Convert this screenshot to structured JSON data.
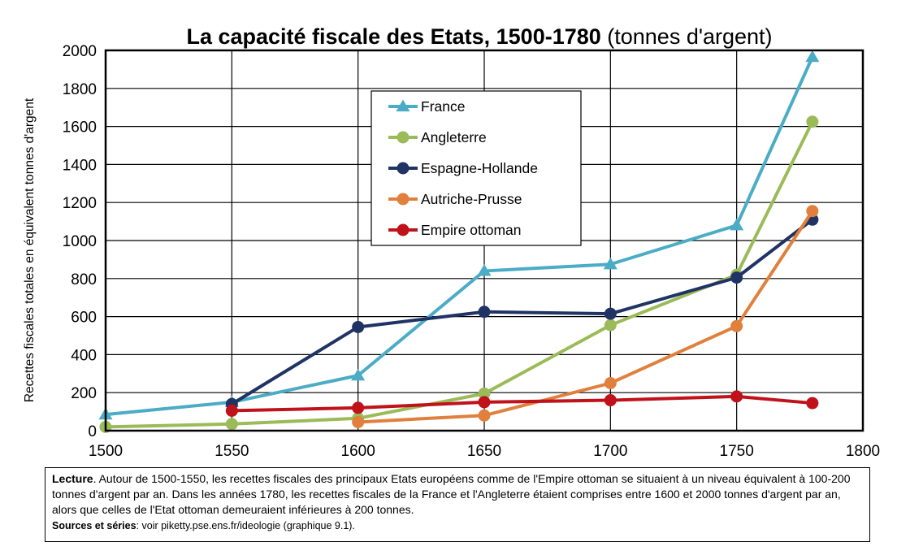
{
  "chart_data": {
    "type": "line",
    "title_bold": "La capacité fiscale des Etats, 1500-1780",
    "title_rest": " (tonnes d'argent)",
    "ylabel": "Recettes fiscales totales en équivalent tonnes d'argent",
    "xlabel": "",
    "xlim": [
      1500,
      1800
    ],
    "ylim": [
      0,
      2000
    ],
    "x_ticks": [
      "1500",
      "1550",
      "1600",
      "1650",
      "1700",
      "1750",
      "1800"
    ],
    "y_ticks": [
      "0",
      "200",
      "400",
      "600",
      "800",
      "1000",
      "1200",
      "1400",
      "1600",
      "1800",
      "2000"
    ],
    "grid": true,
    "legend_position": "upper-center",
    "series": [
      {
        "name": "France",
        "color": "#4bacc6",
        "marker": "triangle",
        "points": [
          [
            1500,
            85
          ],
          [
            1550,
            150
          ],
          [
            1600,
            290
          ],
          [
            1650,
            840
          ],
          [
            1700,
            875
          ],
          [
            1750,
            1080
          ],
          [
            1780,
            1965
          ]
        ]
      },
      {
        "name": "Angleterre",
        "color": "#9bbb59",
        "marker": "circle",
        "points": [
          [
            1500,
            20
          ],
          [
            1550,
            35
          ],
          [
            1600,
            65
          ],
          [
            1650,
            195
          ],
          [
            1700,
            555
          ],
          [
            1750,
            820
          ],
          [
            1780,
            1625
          ]
        ]
      },
      {
        "name": "Espagne-Hollande",
        "color": "#1f3464",
        "marker": "circle",
        "points": [
          [
            1550,
            140
          ],
          [
            1600,
            545
          ],
          [
            1650,
            625
          ],
          [
            1700,
            615
          ],
          [
            1750,
            805
          ],
          [
            1780,
            1110
          ]
        ]
      },
      {
        "name": "Autriche-Prusse",
        "color": "#e0803c",
        "marker": "circle",
        "points": [
          [
            1600,
            45
          ],
          [
            1650,
            80
          ],
          [
            1700,
            250
          ],
          [
            1750,
            550
          ],
          [
            1780,
            1155
          ]
        ]
      },
      {
        "name": "Empire ottoman",
        "color": "#c0121b",
        "marker": "circle",
        "points": [
          [
            1550,
            105
          ],
          [
            1600,
            120
          ],
          [
            1650,
            150
          ],
          [
            1700,
            160
          ],
          [
            1750,
            180
          ],
          [
            1780,
            145
          ]
        ]
      }
    ]
  },
  "note": {
    "lead_label": "Lecture",
    "lead_text": ". Autour de 1500-1550, les recettes fiscales des principaux Etats européens comme de l'Empire ottoman se situaient à un niveau équivalent à 100-200 tonnes d'argent par an. Dans les années 1780, les recettes fiscales de la France et l'Angleterre étaient comprises entre 1600 et 2000 tonnes d'argent par an, alors que celles de l'Etat ottoman demeuraient inférieures à 200 tonnes.",
    "sources_label": "Sources et séries",
    "sources_text": ": voir piketty.pse.ens.fr/ideologie (graphique 9.1)."
  }
}
